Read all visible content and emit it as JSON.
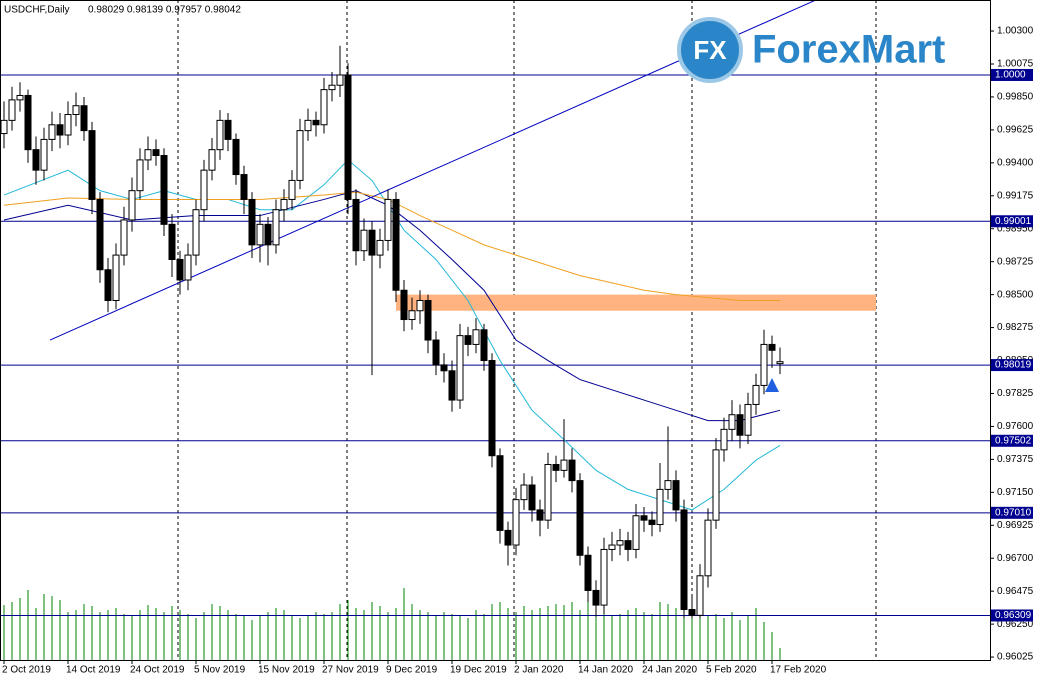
{
  "header": {
    "symbol": "USDCHF,Daily",
    "ohlc": "0.98029 0.98139 0.97957 0.98042"
  },
  "logo": {
    "icon": "FX",
    "text": "ForexMart"
  },
  "chart_data": {
    "type": "candlestick",
    "categories": [
      "2 Oct 2019",
      null,
      null,
      null,
      null,
      null,
      null,
      null,
      "14 Oct 2019",
      null,
      null,
      null,
      null,
      null,
      null,
      null,
      "24 Oct 2019",
      null,
      null,
      null,
      null,
      null,
      null,
      null,
      "5 Nov 2019",
      null,
      null,
      null,
      null,
      null,
      null,
      null,
      "15 Nov 2019",
      null,
      null,
      null,
      null,
      null,
      null,
      null,
      "27 Nov 2019",
      null,
      null,
      null,
      null,
      null,
      null,
      null,
      "9 Dec 2019",
      null,
      null,
      null,
      null,
      null,
      null,
      null,
      "19 Dec 2019",
      null,
      null,
      null,
      null,
      null,
      null,
      null,
      "2 Jan 2020",
      null,
      null,
      null,
      null,
      null,
      null,
      null,
      "14 Jan 2020",
      null,
      null,
      null,
      null,
      null,
      null,
      null,
      "24 Jan 2020",
      null,
      null,
      null,
      null,
      null,
      null,
      null,
      "5 Feb 2020",
      null,
      null,
      null,
      null,
      null,
      null,
      null,
      "17 Feb 2020",
      null
    ],
    "open": [
      0.996,
      0.9969,
      0.9983,
      0.9986,
      0.9949,
      0.9935,
      0.9956,
      0.9966,
      0.9959,
      0.9973,
      0.9979,
      0.9962,
      0.9915,
      0.9867,
      0.9846,
      0.9877,
      0.9901,
      0.9921,
      0.9942,
      0.9949,
      0.9945,
      0.9898,
      0.9874,
      0.986,
      0.9877,
      0.9908,
      0.9935,
      0.9949,
      0.9969,
      0.9956,
      0.9932,
      0.9915,
      0.9884,
      0.9898,
      0.9884,
      0.9908,
      0.9915,
      0.9928,
      0.9962,
      0.9969,
      0.9966,
      0.999,
      0.9993,
      1.0,
      0.9915,
      0.988,
      0.9894,
      0.9877,
      0.9887,
      0.9915,
      0.9853,
      0.9833,
      0.9839,
      0.9846,
      0.9819,
      0.9802,
      0.9798,
      0.9778,
      0.9822,
      0.9816,
      0.9826,
      0.9805,
      0.974,
      0.9689,
      0.9679,
      0.971,
      0.972,
      0.9703,
      0.9696,
      0.9734,
      0.973,
      0.9737,
      0.9723,
      0.9672,
      0.9648,
      0.9638,
      0.9676,
      0.9679,
      0.9682,
      0.9676,
      0.9699,
      0.9696,
      0.9693,
      0.9717,
      0.9723,
      0.9703,
      0.9635,
      0.9631,
      0.9658,
      0.9696,
      0.9744,
      0.9758,
      0.9768,
      0.9754,
      0.9775,
      0.9788,
      0.9816,
      0.98029
    ],
    "high": [
      0.9982,
      0.9992,
      0.9995,
      0.999,
      0.9958,
      0.9964,
      0.9975,
      0.9974,
      0.9982,
      0.9988,
      0.9985,
      0.9968,
      0.992,
      0.9875,
      0.9885,
      0.991,
      0.993,
      0.995,
      0.9958,
      0.9956,
      0.995,
      0.9905,
      0.988,
      0.9885,
      0.9915,
      0.9942,
      0.9957,
      0.9976,
      0.9974,
      0.996,
      0.9938,
      0.992,
      0.9905,
      0.9903,
      0.9915,
      0.9922,
      0.9935,
      0.997,
      0.9977,
      0.9975,
      0.9998,
      1.0002,
      1.002,
      1.0008,
      0.9922,
      0.9902,
      0.99,
      0.9895,
      0.9922,
      0.992,
      0.986,
      0.9848,
      0.9853,
      0.985,
      0.9825,
      0.981,
      0.9805,
      0.983,
      0.9828,
      0.9834,
      0.983,
      0.981,
      0.9745,
      0.9695,
      0.9718,
      0.9728,
      0.9726,
      0.971,
      0.9742,
      0.974,
      0.9765,
      0.9745,
      0.9728,
      0.9678,
      0.9655,
      0.9684,
      0.9688,
      0.969,
      0.9688,
      0.9707,
      0.9705,
      0.9702,
      0.9735,
      0.976,
      0.973,
      0.971,
      0.9645,
      0.9666,
      0.9704,
      0.9752,
      0.9766,
      0.9778,
      0.9775,
      0.9783,
      0.9796,
      0.9826,
      0.9822,
      0.98139
    ],
    "low": [
      0.995,
      0.9962,
      0.9975,
      0.994,
      0.9925,
      0.9928,
      0.9948,
      0.995,
      0.9952,
      0.9965,
      0.9955,
      0.9905,
      0.9858,
      0.9838,
      0.984,
      0.987,
      0.9893,
      0.9915,
      0.9935,
      0.9938,
      0.989,
      0.9862,
      0.985,
      0.9853,
      0.987,
      0.99,
      0.9928,
      0.9942,
      0.9948,
      0.9925,
      0.9905,
      0.9875,
      0.9872,
      0.987,
      0.9878,
      0.99,
      0.9908,
      0.9922,
      0.9955,
      0.9958,
      0.996,
      0.9982,
      0.9985,
      0.9905,
      0.987,
      0.9873,
      0.9795,
      0.9868,
      0.988,
      0.9845,
      0.9825,
      0.9826,
      0.983,
      0.981,
      0.9795,
      0.979,
      0.977,
      0.9772,
      0.9808,
      0.981,
      0.9798,
      0.9732,
      0.968,
      0.9665,
      0.9672,
      0.9703,
      0.9695,
      0.9685,
      0.969,
      0.9722,
      0.9725,
      0.9715,
      0.9665,
      0.964,
      0.963,
      0.9632,
      0.9668,
      0.9672,
      0.9668,
      0.967,
      0.9688,
      0.9685,
      0.9688,
      0.971,
      0.9695,
      0.9629,
      0.9629,
      0.9629,
      0.965,
      0.969,
      0.9736,
      0.975,
      0.9745,
      0.9748,
      0.9768,
      0.9782,
      0.98,
      0.97957
    ],
    "close": [
      0.9969,
      0.9983,
      0.9986,
      0.9949,
      0.9935,
      0.9956,
      0.9966,
      0.9959,
      0.9973,
      0.9979,
      0.9962,
      0.9915,
      0.9867,
      0.9846,
      0.9877,
      0.9901,
      0.9921,
      0.9942,
      0.9949,
      0.9945,
      0.9898,
      0.9874,
      0.986,
      0.9877,
      0.9908,
      0.9935,
      0.9949,
      0.9969,
      0.9956,
      0.9932,
      0.9915,
      0.9884,
      0.9898,
      0.9884,
      0.9908,
      0.9915,
      0.9928,
      0.9962,
      0.9969,
      0.9966,
      0.999,
      0.9993,
      1.0,
      0.9915,
      0.988,
      0.9894,
      0.9877,
      0.9887,
      0.9915,
      0.9853,
      0.9833,
      0.9839,
      0.9846,
      0.9819,
      0.9802,
      0.9798,
      0.9778,
      0.9822,
      0.9816,
      0.9826,
      0.9805,
      0.974,
      0.9689,
      0.9679,
      0.971,
      0.972,
      0.9703,
      0.9696,
      0.9734,
      0.973,
      0.9737,
      0.9723,
      0.9672,
      0.9648,
      0.9638,
      0.9676,
      0.9679,
      0.9682,
      0.9676,
      0.9699,
      0.9696,
      0.9693,
      0.9717,
      0.9723,
      0.9703,
      0.9635,
      0.9631,
      0.9658,
      0.9696,
      0.9744,
      0.9758,
      0.9768,
      0.9754,
      0.9775,
      0.9788,
      0.9816,
      0.9812,
      0.98042
    ],
    "volume": [
      55,
      58,
      62,
      70,
      52,
      66,
      64,
      60,
      48,
      50,
      56,
      54,
      48,
      50,
      52,
      46,
      44,
      50,
      55,
      52,
      48,
      54,
      50,
      46,
      42,
      48,
      56,
      54,
      50,
      46,
      44,
      40,
      45,
      48,
      52,
      50,
      45,
      42,
      44,
      48,
      46,
      48,
      56,
      60,
      52,
      50,
      58,
      54,
      48,
      52,
      72,
      56,
      50,
      48,
      45,
      48,
      46,
      44,
      42,
      50,
      46,
      56,
      58,
      52,
      48,
      54,
      50,
      52,
      54,
      56,
      55,
      58,
      50,
      60,
      52,
      48,
      44,
      46,
      50,
      52,
      48,
      46,
      58,
      56,
      52,
      56,
      50,
      48,
      44,
      46,
      42,
      48,
      40,
      45,
      52,
      38,
      28,
      12
    ],
    "vlim": [
      0,
      100
    ],
    "volume_color": "#008000",
    "lines": [
      {
        "color": "#20b8d8",
        "x": [
          0,
          8,
          12,
          16,
          20,
          24,
          28,
          32,
          36,
          40,
          43,
          46,
          50,
          54,
          58,
          62,
          66,
          70,
          74,
          78,
          82,
          86,
          90,
          94,
          97
        ],
        "values": [
          0.9918,
          0.9935,
          0.9921,
          0.9915,
          0.9921,
          0.9915,
          0.9915,
          0.9908,
          0.9908,
          0.9925,
          0.9942,
          0.9928,
          0.9894,
          0.9874,
          0.9846,
          0.9805,
          0.9771,
          0.9751,
          0.973,
          0.9717,
          0.971,
          0.9703,
          0.9717,
          0.9737,
          0.9747
        ]
      },
      {
        "color": "#000090",
        "x": [
          0,
          8,
          16,
          24,
          32,
          40,
          44,
          48,
          52,
          56,
          60,
          64,
          68,
          72,
          76,
          80,
          84,
          88,
          92,
          97
        ],
        "values": [
          0.9901,
          0.9911,
          0.9901,
          0.9904,
          0.9904,
          0.9915,
          0.9921,
          0.9911,
          0.9894,
          0.9874,
          0.9853,
          0.9819,
          0.9805,
          0.9792,
          0.9785,
          0.9778,
          0.9771,
          0.9764,
          0.9764,
          0.9771
        ]
      },
      {
        "color": "#f0a020",
        "x": [
          0,
          8,
          16,
          24,
          32,
          40,
          44,
          48,
          52,
          56,
          60,
          64,
          68,
          72,
          76,
          80,
          84,
          88,
          92,
          97
        ],
        "values": [
          0.9911,
          0.9916,
          0.9915,
          0.9915,
          0.9915,
          0.9918,
          0.992,
          0.9915,
          0.9904,
          0.9894,
          0.9884,
          0.9877,
          0.987,
          0.9863,
          0.9858,
          0.9853,
          0.985,
          0.9848,
          0.9846,
          0.9846
        ]
      },
      {
        "color": "#0000c0",
        "x": [
          5.75,
          101.4
        ],
        "values": [
          0.9819,
          1.0051
        ]
      }
    ],
    "levels": [
      {
        "value": 1.0,
        "label": "1.0000"
      },
      {
        "value": 0.99001,
        "label": "0.99001"
      },
      {
        "value": 0.98019,
        "label": "0.98019"
      },
      {
        "value": 0.97502,
        "label": "0.97502"
      },
      {
        "value": 0.9701,
        "label": "0.97010"
      },
      {
        "value": 0.96309,
        "label": "0.96309"
      }
    ],
    "level_color": "#000090",
    "zone": {
      "x": [
        49,
        109
      ],
      "values": [
        0.9839,
        0.985
      ],
      "color": "#ffb380"
    },
    "ylim": [
      0.96005,
      1.00512
    ],
    "yticks": [
      {
        "value": 1.003,
        "label": "1.00300"
      },
      {
        "value": 1.00075,
        "label": "1.00075"
      },
      {
        "value": 0.9985,
        "label": "0.99850"
      },
      {
        "value": 0.99625,
        "label": "0.99625"
      },
      {
        "value": 0.994,
        "label": "0.99400"
      },
      {
        "value": 0.99175,
        "label": "0.99175"
      },
      {
        "value": 0.9895,
        "label": "0.98950"
      },
      {
        "value": 0.98725,
        "label": "0.98725"
      },
      {
        "value": 0.985,
        "label": "0.98500"
      },
      {
        "value": 0.98275,
        "label": "0.98275"
      },
      {
        "value": 0.9805,
        "label": "0.98050"
      },
      {
        "value": 0.97825,
        "label": "0.97825"
      },
      {
        "value": 0.976,
        "label": "0.97600"
      },
      {
        "value": 0.97375,
        "label": "0.97375"
      },
      {
        "value": 0.9715,
        "label": "0.97150"
      },
      {
        "value": 0.96925,
        "label": "0.96925"
      },
      {
        "value": 0.967,
        "label": "0.96700"
      },
      {
        "value": 0.96475,
        "label": "0.96475"
      },
      {
        "value": 0.9625,
        "label": "0.96250"
      },
      {
        "value": 0.96025,
        "label": "0.96025"
      }
    ],
    "grid": false
  }
}
